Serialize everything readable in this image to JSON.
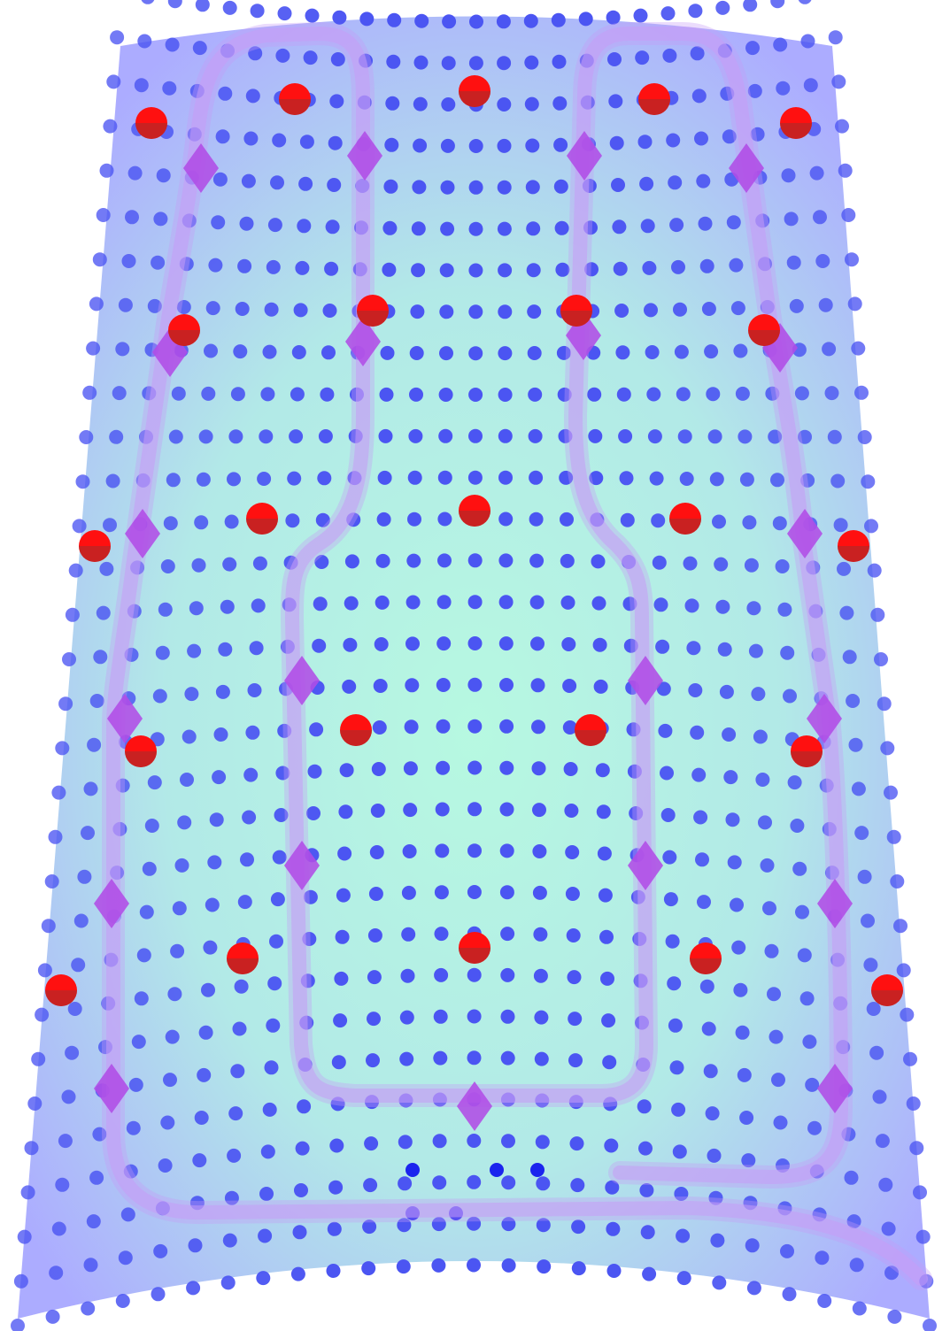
{
  "colors": {
    "surface_center": "#b3f8df",
    "surface_edge": "#a8a8ff",
    "grid_dot": "#4b55f2",
    "grid_dot_dark": "#1b24ee",
    "control_point": "#ff1010",
    "control_point_shade": "#9d2f2f",
    "path_trail": "#c79cf5",
    "path_marker": "#b04ce6"
  },
  "icons": {
    "control_point": "red-circle-icon",
    "path_marker": "purple-diamond-icon",
    "grid_point": "blue-dot-icon"
  }
}
